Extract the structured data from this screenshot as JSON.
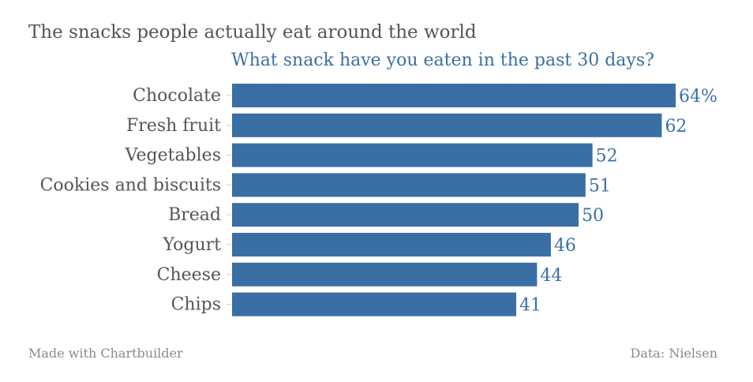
{
  "chart_data": {
    "type": "bar",
    "orientation": "horizontal",
    "title": "The snacks people actually eat around the world",
    "subtitle": "What snack have you eaten in the past 30 days?",
    "categories": [
      "Chocolate",
      "Fresh fruit",
      "Vegetables",
      "Cookies and biscuits",
      "Bread",
      "Yogurt",
      "Cheese",
      "Chips"
    ],
    "values": [
      64,
      62,
      52,
      51,
      50,
      46,
      44,
      41
    ],
    "value_labels": [
      "64%",
      "62",
      "52",
      "51",
      "50",
      "46",
      "44",
      "41"
    ],
    "xlim": [
      0,
      64
    ],
    "grid": false,
    "bar_color": "#3a6fa5"
  },
  "footer": {
    "credit": "Made with Chartbuilder",
    "source": "Data: Nielsen"
  }
}
